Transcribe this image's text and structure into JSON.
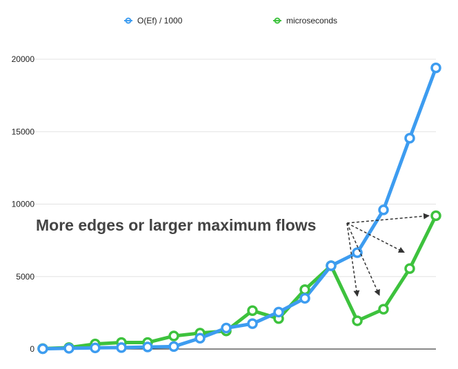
{
  "chart_data": {
    "type": "line",
    "title": "",
    "xlabel": "",
    "ylabel": "",
    "x": [
      1,
      2,
      3,
      4,
      5,
      6,
      7,
      8,
      9,
      10,
      11,
      12,
      13,
      14,
      15,
      16
    ],
    "ylim": [
      0,
      20000
    ],
    "yticks": [
      0,
      5000,
      10000,
      15000,
      20000
    ],
    "grid": true,
    "legend_position": "top",
    "series": [
      {
        "name": "O(Ef) / 1000",
        "color": "#3d9cf0",
        "values": [
          20,
          50,
          80,
          100,
          140,
          170,
          750,
          1450,
          1750,
          2550,
          3500,
          5750,
          6650,
          9600,
          14550,
          19400
        ]
      },
      {
        "name": "microseconds",
        "color": "#3dc23d",
        "values": [
          30,
          100,
          350,
          450,
          450,
          900,
          1100,
          1250,
          2650,
          2100,
          4100,
          5750,
          1950,
          2750,
          5550,
          9200
        ]
      }
    ],
    "annotation": {
      "text": "More edges or larger maximum flows",
      "targets": [
        {
          "x": 16,
          "y": 9200
        },
        {
          "x": 15,
          "y": 6200
        },
        {
          "x": 14,
          "y": 3000
        },
        {
          "x": 13,
          "y": 2800
        }
      ]
    }
  }
}
